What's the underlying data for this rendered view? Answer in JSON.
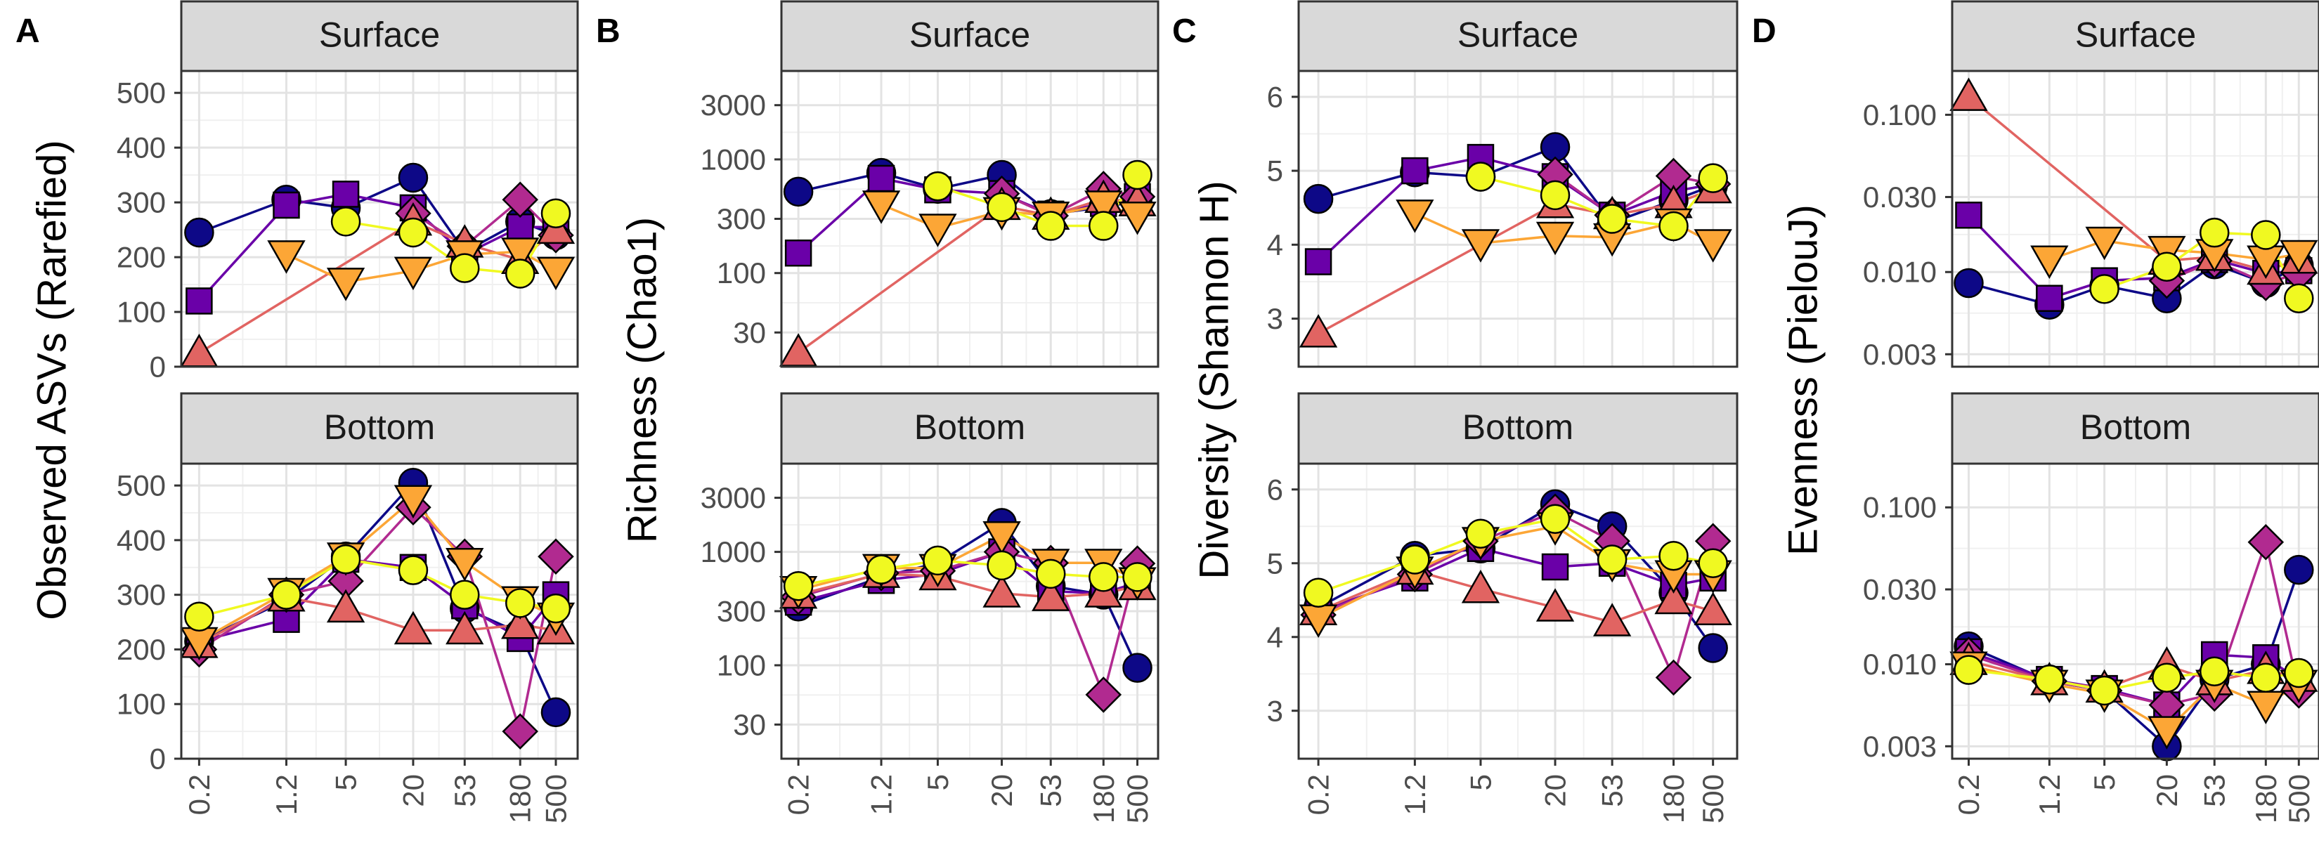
{
  "x_ticks": [
    "0.2",
    "1.2",
    "5",
    "20",
    "53",
    "180",
    "500"
  ],
  "series_colors": [
    "#0D0887",
    "#6A00A8",
    "#B12A90",
    "#E16462",
    "#FCA636",
    "#F0F921"
  ],
  "series_shapes": [
    "circle",
    "square",
    "diamond",
    "triangle-up",
    "triangle-down",
    "circle"
  ],
  "chart_data": [
    {
      "letter": "A",
      "type": "line",
      "ylabel": "Observed ASVs (Rarefied)",
      "scale": "linear",
      "ylim": [
        0,
        540
      ],
      "yticks": [
        0,
        100,
        200,
        300,
        400,
        500
      ],
      "ytick_labels": [
        "0",
        "100",
        "200",
        "300",
        "400",
        "500"
      ],
      "x": [
        "0.2",
        "1.2",
        "5",
        "20",
        "53",
        "180",
        "500"
      ],
      "facets": [
        {
          "strip": "Surface",
          "series": [
            {
              "values": [
                245,
                305,
                290,
                345,
                210,
                265,
                240
              ]
            },
            {
              "values": [
                120,
                295,
                315,
                290,
                205,
                255,
                255
              ]
            },
            {
              "values": [
                null,
                null,
                null,
                280,
                220,
                305,
                240
              ]
            },
            {
              "values": [
                25,
                null,
                null,
                265,
                225,
                195,
                250
              ]
            },
            {
              "values": [
                null,
                205,
                155,
                175,
                205,
                210,
                175
              ]
            },
            {
              "values": [
                null,
                null,
                265,
                245,
                180,
                170,
                280
              ]
            }
          ]
        },
        {
          "strip": "Bottom",
          "series": [
            {
              "values": [
                215,
                290,
                370,
                505,
                275,
                230,
                85
              ]
            },
            {
              "values": [
                215,
                255,
                365,
                350,
                280,
                220,
                300
              ]
            },
            {
              "values": [
                200,
                300,
                325,
                460,
                370,
                50,
                370
              ]
            },
            {
              "values": [
                210,
                295,
                275,
                235,
                235,
                245,
                235
              ]
            },
            {
              "values": [
                215,
                305,
                370,
                475,
                360,
                290,
                260
              ]
            },
            {
              "values": [
                260,
                300,
                365,
                345,
                300,
                285,
                275
              ]
            }
          ]
        }
      ]
    },
    {
      "letter": "B",
      "type": "line",
      "ylabel": "Richness (Chao1)",
      "scale": "log",
      "ylim": [
        15,
        6000
      ],
      "yticks": [
        30,
        100,
        300,
        1000,
        3000
      ],
      "ytick_labels": [
        "30",
        "100",
        "300",
        "1000",
        "3000"
      ],
      "x": [
        "0.2",
        "1.2",
        "5",
        "20",
        "53",
        "180",
        "500"
      ],
      "facets": [
        {
          "strip": "Surface",
          "series": [
            {
              "values": [
                520,
                760,
                550,
                730,
                330,
                380,
                430
              ]
            },
            {
              "values": [
                150,
                680,
                540,
                500,
                330,
                410,
                470
              ]
            },
            {
              "values": [
                null,
                null,
                null,
                500,
                320,
                550,
                470
              ]
            },
            {
              "values": [
                20,
                null,
                null,
                390,
                320,
                450,
                420
              ]
            },
            {
              "values": [
                null,
                400,
                250,
                350,
                320,
                400,
                320
              ]
            },
            {
              "values": [
                null,
                null,
                580,
                380,
                260,
                260,
                730
              ]
            }
          ]
        },
        {
          "strip": "Bottom",
          "series": [
            {
              "values": [
                330,
                600,
                800,
                1800,
                500,
                420,
                95
              ]
            },
            {
              "values": [
                360,
                560,
                640,
                1000,
                450,
                430,
                540
              ]
            },
            {
              "values": [
                400,
                650,
                680,
                1000,
                800,
                55,
                790
              ]
            },
            {
              "values": [
                420,
                640,
                610,
                430,
                400,
                430,
                500
              ]
            },
            {
              "values": [
                460,
                720,
                720,
                1400,
                800,
                800,
                550
              ]
            },
            {
              "values": [
                500,
                700,
                840,
                760,
                640,
                600,
                600
              ]
            }
          ]
        }
      ]
    },
    {
      "letter": "C",
      "type": "line",
      "ylabel": "Diversity (Shannon H)",
      "scale": "linear",
      "ylim": [
        2.35,
        6.35
      ],
      "yticks": [
        3,
        4,
        5,
        6
      ],
      "ytick_labels": [
        "3",
        "4",
        "5",
        "6"
      ],
      "x": [
        "0.2",
        "1.2",
        "5",
        "20",
        "53",
        "180",
        "500"
      ],
      "facets": [
        {
          "strip": "Surface",
          "series": [
            {
              "values": [
                4.62,
                4.98,
                4.92,
                5.32,
                4.3,
                4.6,
                4.8
              ]
            },
            {
              "values": [
                3.77,
                5.0,
                5.18,
                4.92,
                4.4,
                4.72,
                4.82
              ]
            },
            {
              "values": [
                null,
                null,
                null,
                4.95,
                4.4,
                4.93,
                4.82
              ]
            },
            {
              "values": [
                2.8,
                null,
                null,
                4.55,
                4.4,
                4.55,
                4.75
              ]
            },
            {
              "values": [
                null,
                4.42,
                4.02,
                4.12,
                4.1,
                4.3,
                4.02
              ]
            },
            {
              "values": [
                null,
                null,
                4.92,
                4.67,
                4.35,
                4.25,
                4.9
              ]
            }
          ]
        },
        {
          "strip": "Bottom",
          "series": [
            {
              "values": [
                4.4,
                5.1,
                5.2,
                5.8,
                5.5,
                4.6,
                3.85
              ]
            },
            {
              "values": [
                4.35,
                4.8,
                5.2,
                4.95,
                5.0,
                4.7,
                4.8
              ]
            },
            {
              "values": [
                4.3,
                4.85,
                5.3,
                5.7,
                5.3,
                3.45,
                5.3
              ]
            },
            {
              "values": [
                4.35,
                4.9,
                4.65,
                4.4,
                4.2,
                4.5,
                4.35
              ]
            },
            {
              "values": [
                4.25,
                4.9,
                5.3,
                5.5,
                5.0,
                4.85,
                4.85
              ]
            },
            {
              "values": [
                4.6,
                5.05,
                5.4,
                5.6,
                5.05,
                5.1,
                5.0
              ]
            }
          ]
        }
      ]
    },
    {
      "letter": "D",
      "type": "line",
      "ylabel": "Evenness (PielouJ)",
      "scale": "log",
      "ylim": [
        0.0025,
        0.19
      ],
      "yticks": [
        0.003,
        0.01,
        0.03,
        0.1
      ],
      "ytick_labels": [
        "0.003",
        "0.010",
        "0.030",
        "0.100"
      ],
      "x": [
        "0.2",
        "1.2",
        "5",
        "20",
        "53",
        "180",
        "500"
      ],
      "facets": [
        {
          "strip": "Surface",
          "series": [
            {
              "values": [
                0.0085,
                0.0062,
                0.0082,
                0.0068,
                0.0112,
                0.0085,
                0.011
              ]
            },
            {
              "values": [
                0.023,
                0.0068,
                0.0088,
                0.0092,
                0.012,
                0.0098,
                0.0102
              ]
            },
            {
              "values": [
                null,
                null,
                null,
                0.0088,
                0.0118,
                0.0085,
                0.0098
              ]
            },
            {
              "values": [
                0.13,
                null,
                null,
                0.0118,
                0.0125,
                0.0102,
                0.012
              ]
            },
            {
              "values": [
                null,
                0.012,
                0.0158,
                0.0138,
                0.0132,
                0.012,
                0.013
              ]
            },
            {
              "values": [
                null,
                null,
                0.0078,
                0.0108,
                0.0178,
                0.0172,
                0.0068
              ]
            }
          ]
        },
        {
          "strip": "Bottom",
          "series": [
            {
              "values": [
                0.013,
                0.0078,
                0.0068,
                0.003,
                0.008,
                0.01,
                0.04
              ]
            },
            {
              "values": [
                0.012,
                0.008,
                0.007,
                0.0055,
                0.0115,
                0.011,
                0.008
              ]
            },
            {
              "values": [
                0.0115,
                0.0078,
                0.0068,
                0.0055,
                0.0065,
                0.06,
                0.0068
              ]
            },
            {
              "values": [
                0.0105,
                0.0078,
                0.007,
                0.0098,
                0.0078,
                0.0092,
                0.0082
              ]
            },
            {
              "values": [
                0.0098,
                0.0075,
                0.0065,
                0.0038,
                0.0075,
                0.0055,
                0.0075
              ]
            },
            {
              "values": [
                0.0092,
                0.008,
                0.0068,
                0.0082,
                0.009,
                0.0082,
                0.0088
              ]
            }
          ]
        }
      ]
    }
  ]
}
